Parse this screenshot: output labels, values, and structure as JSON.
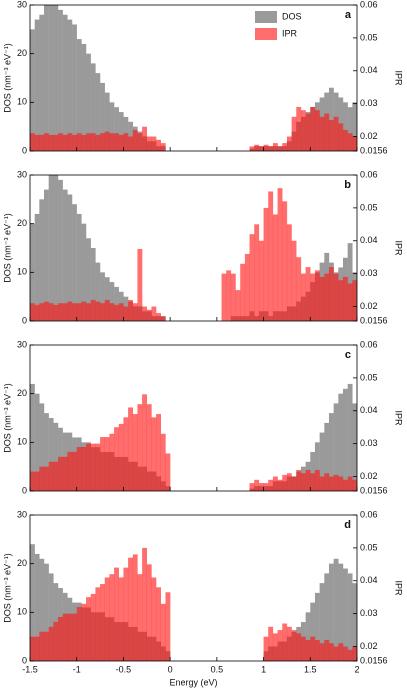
{
  "chart_data": [
    {
      "type": "histogram",
      "label": "a",
      "ylabel": "DOS (nm⁻³ eV⁻¹)",
      "y2label": "IPR",
      "ylim": [
        0,
        30
      ],
      "yticks": [
        0,
        10,
        20,
        30
      ],
      "y2lim": [
        0.0156,
        0.06
      ],
      "y2ticks": [
        0.0156,
        0.02,
        0.03,
        0.04,
        0.05,
        0.06
      ],
      "xlim": [
        -1.5,
        2
      ],
      "bins": [
        -1.5,
        -1.45,
        -1.4,
        -1.35,
        -1.3,
        -1.25,
        -1.2,
        -1.15,
        -1.1,
        -1.05,
        -1,
        -0.95,
        -0.9,
        -0.85,
        -0.8,
        -0.75,
        -0.7,
        -0.65,
        -0.6,
        -0.55,
        -0.5,
        -0.45,
        -0.4,
        -0.35,
        -0.3,
        -0.25,
        -0.2,
        -0.15,
        -0.1,
        -0.05,
        0,
        0.05,
        0.1,
        0.15,
        0.2,
        0.25,
        0.3,
        0.35,
        0.4,
        0.45,
        0.5,
        0.55,
        0.6,
        0.65,
        0.7,
        0.75,
        0.8,
        0.85,
        0.9,
        0.95,
        1,
        1.05,
        1.1,
        1.15,
        1.2,
        1.25,
        1.3,
        1.35,
        1.4,
        1.45,
        1.5,
        1.55,
        1.6,
        1.65,
        1.7,
        1.75,
        1.8,
        1.85,
        1.9,
        1.95,
        2
      ],
      "series": [
        {
          "name": "DOS",
          "color": "#9a9a9a",
          "values": [
            25,
            27,
            28,
            30,
            30,
            30,
            29,
            28,
            27,
            26,
            23,
            22,
            20,
            18,
            16,
            14,
            12,
            10,
            9,
            8,
            7,
            6,
            5,
            4,
            3,
            2,
            2,
            1,
            1,
            0,
            0,
            0,
            0,
            0,
            0,
            0,
            0,
            0,
            0,
            0,
            0,
            0,
            0,
            0,
            0,
            0,
            0,
            0.5,
            1,
            1,
            1,
            1,
            1,
            1,
            1,
            2,
            4,
            6,
            7,
            8,
            9,
            10,
            11,
            12,
            13,
            12,
            11,
            10,
            9,
            10
          ]
        },
        {
          "name": "IPR",
          "color": "rgba(255,20,20,0.62)",
          "axis": "y2",
          "values": [
            0.021,
            0.0205,
            0.0205,
            0.021,
            0.0205,
            0.0205,
            0.021,
            0.0205,
            0.021,
            0.0205,
            0.021,
            0.0205,
            0.021,
            0.021,
            0.0205,
            0.021,
            0.0215,
            0.021,
            0.021,
            0.0205,
            0.021,
            0.02,
            0.022,
            0.021,
            0.023,
            0.02,
            0.02,
            0.019,
            0.018,
            null,
            null,
            null,
            null,
            null,
            null,
            null,
            null,
            null,
            null,
            null,
            null,
            null,
            null,
            null,
            null,
            null,
            null,
            0.017,
            0.0175,
            0.017,
            0.0175,
            0.017,
            0.018,
            0.017,
            0.018,
            0.02,
            0.026,
            0.029,
            0.028,
            0.027,
            0.029,
            0.028,
            0.026,
            0.027,
            0.025,
            0.026,
            0.024,
            0.022,
            0.021,
            0.02
          ]
        }
      ]
    },
    {
      "type": "histogram",
      "label": "b",
      "ylabel": "DOS (nm⁻³ eV⁻¹)",
      "y2label": "IPR",
      "ylim": [
        0,
        30
      ],
      "yticks": [
        0,
        10,
        20,
        30
      ],
      "y2lim": [
        0.0156,
        0.06
      ],
      "y2ticks": [
        0.0156,
        0.02,
        0.03,
        0.04,
        0.05,
        0.06
      ],
      "xlim": [
        -1.5,
        2
      ],
      "bins": [
        -1.5,
        -1.45,
        -1.4,
        -1.35,
        -1.3,
        -1.25,
        -1.2,
        -1.15,
        -1.1,
        -1.05,
        -1,
        -0.95,
        -0.9,
        -0.85,
        -0.8,
        -0.75,
        -0.7,
        -0.65,
        -0.6,
        -0.55,
        -0.5,
        -0.45,
        -0.4,
        -0.35,
        -0.3,
        -0.25,
        -0.2,
        -0.15,
        -0.1,
        -0.05,
        0,
        0.05,
        0.1,
        0.15,
        0.2,
        0.25,
        0.3,
        0.35,
        0.4,
        0.45,
        0.5,
        0.55,
        0.6,
        0.65,
        0.7,
        0.75,
        0.8,
        0.85,
        0.9,
        0.95,
        1,
        1.05,
        1.1,
        1.15,
        1.2,
        1.25,
        1.3,
        1.35,
        1.4,
        1.45,
        1.5,
        1.55,
        1.6,
        1.65,
        1.7,
        1.75,
        1.8,
        1.85,
        1.9,
        1.95,
        2
      ],
      "series": [
        {
          "color": "#9a9a9a",
          "values": [
            20,
            22,
            25,
            27,
            30,
            30,
            29,
            27,
            26,
            24,
            22,
            20,
            17,
            15,
            12,
            10,
            9,
            8,
            7,
            6,
            5,
            4,
            3,
            3,
            2,
            2,
            1,
            1,
            1,
            0,
            0,
            0,
            0,
            0,
            0,
            0,
            0,
            0,
            0,
            0,
            0,
            0,
            0,
            1,
            1,
            1,
            1,
            2,
            1,
            2,
            2,
            1,
            2,
            2,
            2,
            3,
            3,
            4,
            5,
            6,
            8,
            10,
            12,
            14,
            12,
            10,
            11,
            13,
            16,
            10
          ]
        },
        {
          "color": "rgba(255,20,20,0.62)",
          "axis": "y2",
          "values": [
            0.021,
            0.0205,
            0.021,
            0.0215,
            0.021,
            0.0205,
            0.021,
            0.021,
            0.0215,
            0.021,
            0.021,
            0.0215,
            0.021,
            0.022,
            0.0215,
            0.021,
            0.022,
            0.021,
            0.0205,
            0.021,
            0.02,
            0.022,
            0.021,
            0.0375,
            0.02,
            0.019,
            0.02,
            0.018,
            0.017,
            null,
            null,
            null,
            null,
            null,
            null,
            null,
            null,
            null,
            null,
            null,
            null,
            0.03,
            0.031,
            0.03,
            0.025,
            0.033,
            0.036,
            0.042,
            0.045,
            0.04,
            0.05,
            0.055,
            0.048,
            0.056,
            0.052,
            0.045,
            0.04,
            0.035,
            0.03,
            0.032,
            0.03,
            0.031,
            0.029,
            0.03,
            0.032,
            0.03,
            0.028,
            0.029,
            0.027,
            0.028
          ]
        }
      ]
    },
    {
      "type": "histogram",
      "label": "c",
      "ylabel": "DOS (nm⁻³ eV⁻¹)",
      "y2label": "IPR",
      "ylim": [
        0,
        30
      ],
      "yticks": [
        0,
        10,
        20,
        30
      ],
      "y2lim": [
        0.0156,
        0.06
      ],
      "y2ticks": [
        0.0156,
        0.02,
        0.03,
        0.04,
        0.05,
        0.06
      ],
      "xlim": [
        -1.5,
        2
      ],
      "bins": [
        -1.5,
        -1.45,
        -1.4,
        -1.35,
        -1.3,
        -1.25,
        -1.2,
        -1.15,
        -1.1,
        -1.05,
        -1,
        -0.95,
        -0.9,
        -0.85,
        -0.8,
        -0.75,
        -0.7,
        -0.65,
        -0.6,
        -0.55,
        -0.5,
        -0.45,
        -0.4,
        -0.35,
        -0.3,
        -0.25,
        -0.2,
        -0.15,
        -0.1,
        -0.05,
        0,
        0.05,
        0.1,
        0.15,
        0.2,
        0.25,
        0.3,
        0.35,
        0.4,
        0.45,
        0.5,
        0.55,
        0.6,
        0.65,
        0.7,
        0.75,
        0.8,
        0.85,
        0.9,
        0.95,
        1,
        1.05,
        1.1,
        1.15,
        1.2,
        1.25,
        1.3,
        1.35,
        1.4,
        1.45,
        1.5,
        1.55,
        1.6,
        1.65,
        1.7,
        1.75,
        1.8,
        1.85,
        1.9,
        1.95,
        2
      ],
      "series": [
        {
          "color": "#9a9a9a",
          "values": [
            22,
            20,
            18,
            16,
            15,
            14,
            13,
            12,
            12,
            11,
            11,
            10,
            10,
            9,
            9,
            8,
            8,
            8,
            7,
            7,
            7,
            6,
            6,
            5,
            5,
            4,
            4,
            3,
            2,
            1,
            0,
            0,
            0,
            0,
            0,
            0,
            0,
            0,
            0,
            0,
            0,
            0,
            0,
            0,
            0,
            0,
            0,
            0.5,
            1,
            1,
            1,
            1,
            2,
            2,
            2,
            3,
            3,
            4,
            5,
            6,
            8,
            10,
            12,
            14,
            16,
            18,
            20,
            21,
            22,
            18
          ]
        },
        {
          "color": "rgba(255,20,20,0.62)",
          "axis": "y2",
          "values": [
            0.0215,
            0.0215,
            0.023,
            0.023,
            0.0245,
            0.0245,
            0.026,
            0.026,
            0.0275,
            0.0275,
            0.029,
            0.029,
            0.03,
            0.03,
            0.03,
            0.032,
            0.032,
            0.033,
            0.035,
            0.036,
            0.038,
            0.041,
            0.039,
            0.042,
            0.045,
            0.042,
            0.038,
            0.039,
            0.033,
            0.027,
            null,
            null,
            null,
            null,
            null,
            null,
            null,
            null,
            null,
            null,
            null,
            null,
            null,
            null,
            null,
            null,
            null,
            0.018,
            0.019,
            0.018,
            0.018,
            0.019,
            0.02,
            0.019,
            0.0205,
            0.021,
            0.02,
            0.022,
            0.021,
            0.022,
            0.021,
            0.022,
            0.02,
            0.021,
            0.02,
            0.0205,
            0.02,
            0.019,
            0.02,
            0.019
          ]
        }
      ]
    },
    {
      "type": "histogram",
      "label": "d",
      "ylabel": "DOS (nm⁻³ eV⁻¹)",
      "y2label": "IPR",
      "xlabel": "Energy (eV)",
      "ylim": [
        0,
        30
      ],
      "yticks": [
        0,
        10,
        20,
        30
      ],
      "y2lim": [
        0.0156,
        0.06
      ],
      "y2ticks": [
        0.0156,
        0.02,
        0.03,
        0.04,
        0.05,
        0.06
      ],
      "xlim": [
        -1.5,
        2
      ],
      "xticks": [
        -1.5,
        -1,
        -0.5,
        0,
        0.5,
        1,
        1.5,
        2
      ],
      "bins": [
        -1.5,
        -1.45,
        -1.4,
        -1.35,
        -1.3,
        -1.25,
        -1.2,
        -1.15,
        -1.1,
        -1.05,
        -1,
        -0.95,
        -0.9,
        -0.85,
        -0.8,
        -0.75,
        -0.7,
        -0.65,
        -0.6,
        -0.55,
        -0.5,
        -0.45,
        -0.4,
        -0.35,
        -0.3,
        -0.25,
        -0.2,
        -0.15,
        -0.1,
        -0.05,
        0,
        0.05,
        0.1,
        0.15,
        0.2,
        0.25,
        0.3,
        0.35,
        0.4,
        0.45,
        0.5,
        0.55,
        0.6,
        0.65,
        0.7,
        0.75,
        0.8,
        0.85,
        0.9,
        0.95,
        1,
        1.05,
        1.1,
        1.15,
        1.2,
        1.25,
        1.3,
        1.35,
        1.4,
        1.45,
        1.5,
        1.55,
        1.6,
        1.65,
        1.7,
        1.75,
        1.8,
        1.85,
        1.9,
        1.95,
        2
      ],
      "series": [
        {
          "color": "#9a9a9a",
          "values": [
            24,
            22,
            21,
            20,
            18,
            16,
            15,
            14,
            13,
            12,
            12,
            11,
            11,
            10,
            10,
            10,
            9,
            9,
            8,
            8,
            8,
            7,
            7,
            6,
            6,
            5,
            5,
            4,
            3,
            2,
            0,
            0,
            0,
            0,
            0,
            0,
            0,
            0,
            0,
            0,
            0,
            0,
            0,
            0,
            0,
            0,
            0,
            0,
            0,
            0,
            2,
            3,
            3,
            4,
            4,
            5,
            6,
            7,
            8,
            10,
            12,
            14,
            16,
            18,
            20,
            21,
            20,
            19,
            18,
            16
          ]
        },
        {
          "color": "rgba(255,20,20,0.62)",
          "axis": "y2",
          "values": [
            0.023,
            0.023,
            0.0245,
            0.0245,
            0.026,
            0.0275,
            0.029,
            0.03,
            0.03,
            0.03,
            0.032,
            0.033,
            0.035,
            0.036,
            0.038,
            0.039,
            0.041,
            0.042,
            0.044,
            0.041,
            0.044,
            0.047,
            0.048,
            0.042,
            0.05,
            0.045,
            0.041,
            0.038,
            0.033,
            0.0365,
            null,
            null,
            null,
            null,
            null,
            null,
            null,
            null,
            null,
            null,
            null,
            null,
            null,
            null,
            null,
            null,
            null,
            null,
            null,
            null,
            0.023,
            0.026,
            0.024,
            0.025,
            0.027,
            0.026,
            0.025,
            0.024,
            0.023,
            0.022,
            0.023,
            0.022,
            0.021,
            0.022,
            0.021,
            0.02,
            0.021,
            0.02,
            0.019,
            0.02
          ]
        }
      ]
    }
  ]
}
